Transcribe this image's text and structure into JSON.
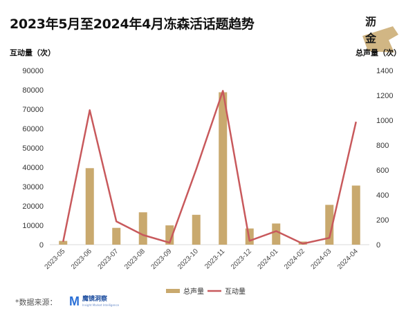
{
  "title": "2023年5月至2024年4月冻森活话题趋势",
  "logo": {
    "line1": "沥",
    "line2": "金"
  },
  "source": {
    "label": "*数据来源：",
    "brand_cn": "魔镜洞察",
    "brand_en": "Insight Market Intelligence"
  },
  "colors": {
    "bar": "#c9a96e",
    "line": "#c8595c",
    "grid": "#e6e6e6"
  },
  "chart_data": {
    "type": "bar",
    "categories": [
      "2023-05",
      "2023-06",
      "2023-07",
      "2023-08",
      "2023-09",
      "2023-10",
      "2023-11",
      "2023-12",
      "2024-01",
      "2024-02",
      "2024-03",
      "2024-04"
    ],
    "series": [
      {
        "name": "总声量",
        "type": "bar",
        "axis": "right",
        "values": [
          30,
          615,
          135,
          260,
          155,
          240,
          1225,
          130,
          170,
          25,
          320,
          475
        ]
      },
      {
        "name": "互动量",
        "type": "line",
        "axis": "left",
        "values": [
          1500,
          69500,
          12000,
          5000,
          1000,
          39000,
          79500,
          2000,
          7000,
          500,
          3500,
          63500
        ]
      }
    ],
    "ylabel_left": "互动量（次）",
    "ylabel_right": "总声量（次）",
    "ylim_left": [
      0,
      90000
    ],
    "ylim_right": [
      0,
      1400
    ],
    "yticks_left": [
      "0",
      "10000",
      "20000",
      "30000",
      "40000",
      "50000",
      "60000",
      "70000",
      "80000",
      "90000"
    ],
    "yticks_right": [
      "0",
      "200",
      "400",
      "600",
      "800",
      "1000",
      "1200",
      "1400"
    ],
    "grid": false,
    "legend": "bottom-center"
  }
}
